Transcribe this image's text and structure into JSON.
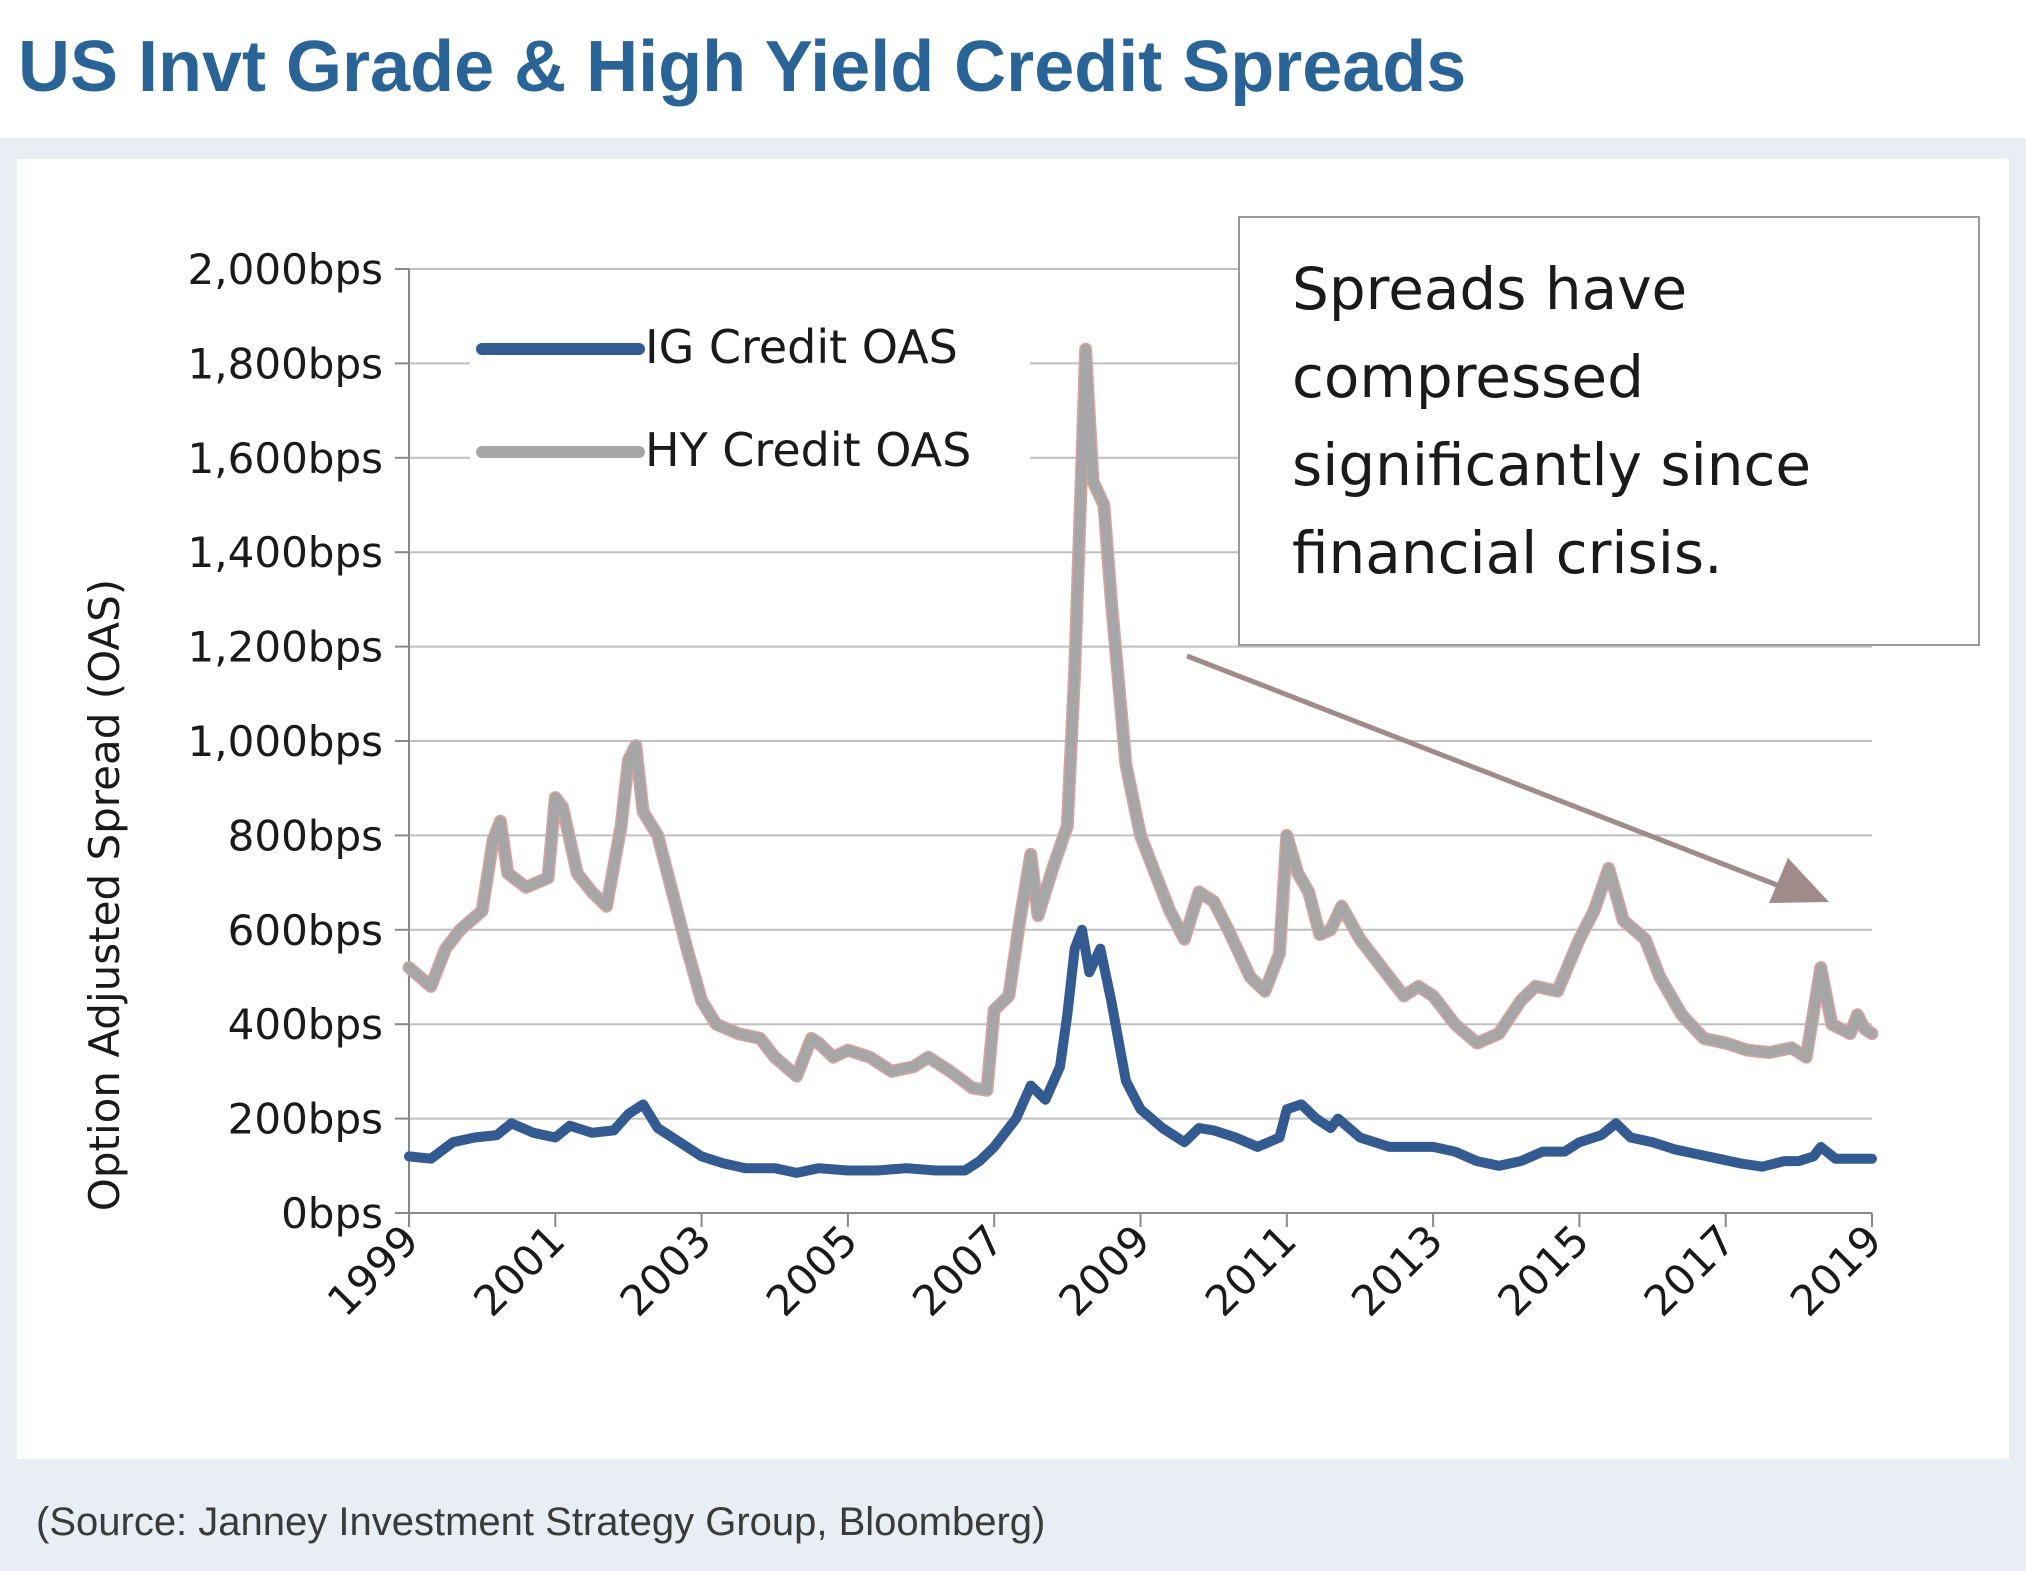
{
  "page": {
    "title": "US Invt Grade & High Yield Credit Spreads",
    "source": "(Source: Janney Investment Strategy Group, Bloomberg)"
  },
  "colors": {
    "title": "#2a6496",
    "ig_line": "#335b91",
    "hy_line": "#a6a6a6",
    "arrow": "#a08a8a",
    "grid": "#bfbfbf",
    "panel_bg": "#e9eef5"
  },
  "chart_data": {
    "type": "line",
    "ylabel": "Option Adjusted Spread (OAS)",
    "ylim": [
      0,
      2000
    ],
    "xlim": [
      1999,
      2019
    ],
    "y_ticks": [
      0,
      200,
      400,
      600,
      800,
      1000,
      1200,
      1400,
      1600,
      1800,
      2000
    ],
    "y_tick_labels": [
      "0bps",
      "200bps",
      "400bps",
      "600bps",
      "800bps",
      "1,000bps",
      "1,200bps",
      "1,400bps",
      "1,600bps",
      "1,800bps",
      "2,000bps"
    ],
    "x_tick_labels": [
      "1999",
      "2001",
      "2003",
      "2005",
      "2007",
      "2009",
      "2011",
      "2013",
      "2015",
      "2017",
      "2019"
    ],
    "grid": true,
    "legend_position": "top-left",
    "annotation": "Spreads have compressed significantly since financial crisis.",
    "series": [
      {
        "name": "IG Credit OAS",
        "points": [
          [
            1999.0,
            120
          ],
          [
            1999.3,
            115
          ],
          [
            1999.6,
            150
          ],
          [
            1999.9,
            160
          ],
          [
            2000.2,
            165
          ],
          [
            2000.4,
            190
          ],
          [
            2000.7,
            170
          ],
          [
            2001.0,
            160
          ],
          [
            2001.2,
            185
          ],
          [
            2001.5,
            170
          ],
          [
            2001.8,
            175
          ],
          [
            2002.0,
            210
          ],
          [
            2002.2,
            230
          ],
          [
            2002.4,
            180
          ],
          [
            2002.7,
            150
          ],
          [
            2003.0,
            120
          ],
          [
            2003.3,
            105
          ],
          [
            2003.6,
            95
          ],
          [
            2004.0,
            95
          ],
          [
            2004.3,
            85
          ],
          [
            2004.6,
            95
          ],
          [
            2005.0,
            90
          ],
          [
            2005.4,
            90
          ],
          [
            2005.8,
            95
          ],
          [
            2006.2,
            90
          ],
          [
            2006.6,
            90
          ],
          [
            2006.8,
            110
          ],
          [
            2007.0,
            140
          ],
          [
            2007.3,
            200
          ],
          [
            2007.5,
            270
          ],
          [
            2007.7,
            240
          ],
          [
            2007.9,
            310
          ],
          [
            2008.0,
            420
          ],
          [
            2008.1,
            560
          ],
          [
            2008.2,
            600
          ],
          [
            2008.3,
            510
          ],
          [
            2008.45,
            560
          ],
          [
            2008.6,
            450
          ],
          [
            2008.8,
            280
          ],
          [
            2009.0,
            220
          ],
          [
            2009.3,
            180
          ],
          [
            2009.6,
            150
          ],
          [
            2009.8,
            180
          ],
          [
            2010.0,
            175
          ],
          [
            2010.3,
            160
          ],
          [
            2010.6,
            140
          ],
          [
            2010.9,
            160
          ],
          [
            2011.0,
            220
          ],
          [
            2011.2,
            230
          ],
          [
            2011.4,
            200
          ],
          [
            2011.6,
            180
          ],
          [
            2011.7,
            200
          ],
          [
            2012.0,
            160
          ],
          [
            2012.4,
            140
          ],
          [
            2012.8,
            140
          ],
          [
            2013.0,
            140
          ],
          [
            2013.3,
            130
          ],
          [
            2013.6,
            110
          ],
          [
            2013.9,
            100
          ],
          [
            2014.2,
            110
          ],
          [
            2014.5,
            130
          ],
          [
            2014.8,
            130
          ],
          [
            2015.0,
            150
          ],
          [
            2015.3,
            165
          ],
          [
            2015.5,
            190
          ],
          [
            2015.7,
            160
          ],
          [
            2016.0,
            150
          ],
          [
            2016.3,
            135
          ],
          [
            2016.6,
            125
          ],
          [
            2016.9,
            115
          ],
          [
            2017.2,
            105
          ],
          [
            2017.5,
            98
          ],
          [
            2017.8,
            110
          ],
          [
            2018.0,
            110
          ],
          [
            2018.2,
            120
          ],
          [
            2018.3,
            140
          ],
          [
            2018.5,
            115
          ],
          [
            2018.7,
            115
          ],
          [
            2019.0,
            115
          ]
        ]
      },
      {
        "name": "HY Credit OAS",
        "points": [
          [
            1999.0,
            520
          ],
          [
            1999.3,
            480
          ],
          [
            1999.5,
            560
          ],
          [
            1999.7,
            600
          ],
          [
            2000.0,
            640
          ],
          [
            2000.15,
            790
          ],
          [
            2000.25,
            830
          ],
          [
            2000.35,
            720
          ],
          [
            2000.6,
            690
          ],
          [
            2000.9,
            710
          ],
          [
            2001.0,
            880
          ],
          [
            2001.1,
            860
          ],
          [
            2001.3,
            720
          ],
          [
            2001.5,
            680
          ],
          [
            2001.7,
            650
          ],
          [
            2001.9,
            820
          ],
          [
            2002.0,
            960
          ],
          [
            2002.1,
            990
          ],
          [
            2002.2,
            850
          ],
          [
            2002.4,
            800
          ],
          [
            2002.6,
            680
          ],
          [
            2002.8,
            560
          ],
          [
            2003.0,
            450
          ],
          [
            2003.2,
            400
          ],
          [
            2003.5,
            380
          ],
          [
            2003.8,
            370
          ],
          [
            2004.0,
            330
          ],
          [
            2004.3,
            290
          ],
          [
            2004.5,
            370
          ],
          [
            2004.6,
            360
          ],
          [
            2004.8,
            330
          ],
          [
            2005.0,
            345
          ],
          [
            2005.3,
            330
          ],
          [
            2005.6,
            300
          ],
          [
            2005.9,
            310
          ],
          [
            2006.1,
            330
          ],
          [
            2006.4,
            300
          ],
          [
            2006.7,
            265
          ],
          [
            2006.9,
            260
          ],
          [
            2007.0,
            430
          ],
          [
            2007.2,
            460
          ],
          [
            2007.35,
            620
          ],
          [
            2007.5,
            760
          ],
          [
            2007.6,
            630
          ],
          [
            2007.8,
            730
          ],
          [
            2008.0,
            820
          ],
          [
            2008.1,
            1150
          ],
          [
            2008.2,
            1600
          ],
          [
            2008.25,
            1830
          ],
          [
            2008.35,
            1550
          ],
          [
            2008.5,
            1500
          ],
          [
            2008.6,
            1300
          ],
          [
            2008.8,
            950
          ],
          [
            2009.0,
            800
          ],
          [
            2009.2,
            720
          ],
          [
            2009.4,
            640
          ],
          [
            2009.6,
            580
          ],
          [
            2009.8,
            680
          ],
          [
            2010.0,
            660
          ],
          [
            2010.2,
            600
          ],
          [
            2010.5,
            500
          ],
          [
            2010.7,
            470
          ],
          [
            2010.9,
            550
          ],
          [
            2011.0,
            800
          ],
          [
            2011.15,
            720
          ],
          [
            2011.3,
            680
          ],
          [
            2011.45,
            590
          ],
          [
            2011.6,
            600
          ],
          [
            2011.75,
            650
          ],
          [
            2012.0,
            580
          ],
          [
            2012.3,
            520
          ],
          [
            2012.6,
            460
          ],
          [
            2012.8,
            480
          ],
          [
            2013.0,
            460
          ],
          [
            2013.3,
            400
          ],
          [
            2013.6,
            360
          ],
          [
            2013.9,
            380
          ],
          [
            2014.2,
            450
          ],
          [
            2014.4,
            480
          ],
          [
            2014.7,
            470
          ],
          [
            2015.0,
            580
          ],
          [
            2015.2,
            640
          ],
          [
            2015.4,
            730
          ],
          [
            2015.6,
            620
          ],
          [
            2015.9,
            580
          ],
          [
            2016.1,
            500
          ],
          [
            2016.4,
            420
          ],
          [
            2016.7,
            370
          ],
          [
            2017.0,
            360
          ],
          [
            2017.3,
            345
          ],
          [
            2017.6,
            340
          ],
          [
            2017.9,
            350
          ],
          [
            2018.1,
            330
          ],
          [
            2018.3,
            520
          ],
          [
            2018.45,
            400
          ],
          [
            2018.7,
            380
          ],
          [
            2018.8,
            420
          ],
          [
            2018.9,
            390
          ],
          [
            2019.0,
            380
          ]
        ]
      }
    ]
  }
}
